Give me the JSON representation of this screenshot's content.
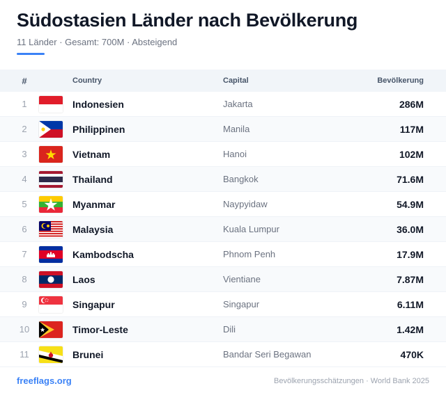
{
  "header": {
    "title": "Südostasien Länder nach Bevölkerung",
    "subtitle": "11 Länder · Gesamt: 700M · Absteigend"
  },
  "table": {
    "columns": {
      "rank": "#",
      "country": "Country",
      "capital": "Capital",
      "population": "Bevölkerung"
    },
    "rows": [
      {
        "rank": "1",
        "flag": "indonesia-flag-icon",
        "country": "Indonesien",
        "capital": "Jakarta",
        "population": "286M"
      },
      {
        "rank": "2",
        "flag": "philippines-flag-icon",
        "country": "Philippinen",
        "capital": "Manila",
        "population": "117M"
      },
      {
        "rank": "3",
        "flag": "vietnam-flag-icon",
        "country": "Vietnam",
        "capital": "Hanoi",
        "population": "102M"
      },
      {
        "rank": "4",
        "flag": "thailand-flag-icon",
        "country": "Thailand",
        "capital": "Bangkok",
        "population": "71.6M"
      },
      {
        "rank": "5",
        "flag": "myanmar-flag-icon",
        "country": "Myanmar",
        "capital": "Naypyidaw",
        "population": "54.9M"
      },
      {
        "rank": "6",
        "flag": "malaysia-flag-icon",
        "country": "Malaysia",
        "capital": "Kuala Lumpur",
        "population": "36.0M"
      },
      {
        "rank": "7",
        "flag": "cambodia-flag-icon",
        "country": "Kambodscha",
        "capital": "Phnom Penh",
        "population": "17.9M"
      },
      {
        "rank": "8",
        "flag": "laos-flag-icon",
        "country": "Laos",
        "capital": "Vientiane",
        "population": "7.87M"
      },
      {
        "rank": "9",
        "flag": "singapore-flag-icon",
        "country": "Singapur",
        "capital": "Singapur",
        "population": "6.11M"
      },
      {
        "rank": "10",
        "flag": "timor-leste-flag-icon",
        "country": "Timor-Leste",
        "capital": "Dili",
        "population": "1.42M"
      },
      {
        "rank": "11",
        "flag": "brunei-flag-icon",
        "country": "Brunei",
        "capital": "Bandar Seri Begawan",
        "population": "470K"
      }
    ]
  },
  "footer": {
    "link": "freeflags.org",
    "note": "Bevölkerungsschätzungen · World Bank 2025"
  },
  "colors": {
    "accent": "#3b82f6",
    "header_bg": "#f1f5f9",
    "alt_row_bg": "#f8fafc"
  }
}
